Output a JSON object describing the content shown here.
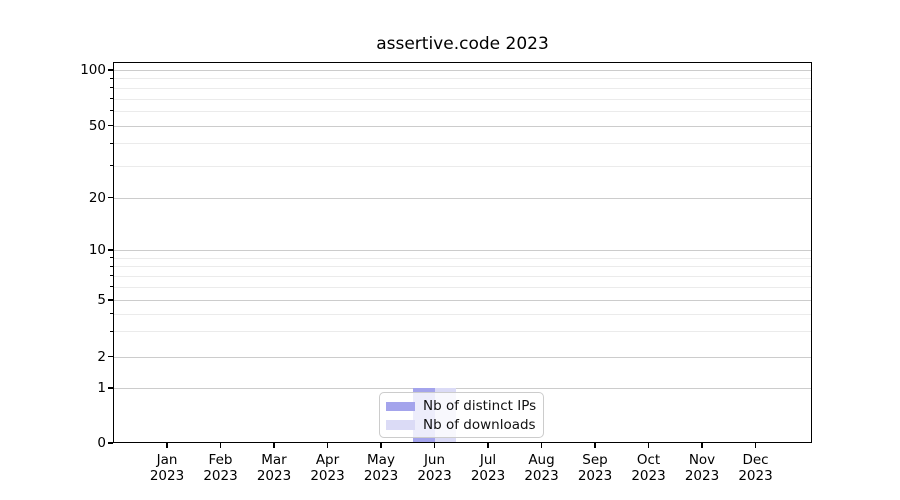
{
  "chart_data": {
    "type": "bar",
    "title": "assertive.code 2023",
    "categories": [
      "Jan 2023",
      "Feb 2023",
      "Mar 2023",
      "Apr 2023",
      "May 2023",
      "Jun 2023",
      "Jul 2023",
      "Aug 2023",
      "Sep 2023",
      "Oct 2023",
      "Nov 2023",
      "Dec 2023"
    ],
    "series": [
      {
        "name": "Nb of distinct IPs",
        "color": "#a4a4ec",
        "values": [
          0,
          0,
          0,
          0,
          0,
          1,
          0,
          0,
          0,
          0,
          0,
          0
        ]
      },
      {
        "name": "Nb of downloads",
        "color": "#dbdbf6",
        "values": [
          0,
          0,
          0,
          0,
          0,
          1,
          0,
          0,
          0,
          0,
          0,
          0
        ]
      }
    ],
    "xlabel": "",
    "ylabel": "",
    "yscale": "symlog",
    "yticks_major": [
      0,
      1,
      2,
      5,
      10,
      20,
      50,
      100
    ],
    "yticks_minor": [
      3,
      4,
      6,
      7,
      8,
      9,
      30,
      40,
      60,
      70,
      80,
      90
    ],
    "ylim": [
      0,
      115
    ],
    "grid": true,
    "legend_position": "lower center"
  }
}
